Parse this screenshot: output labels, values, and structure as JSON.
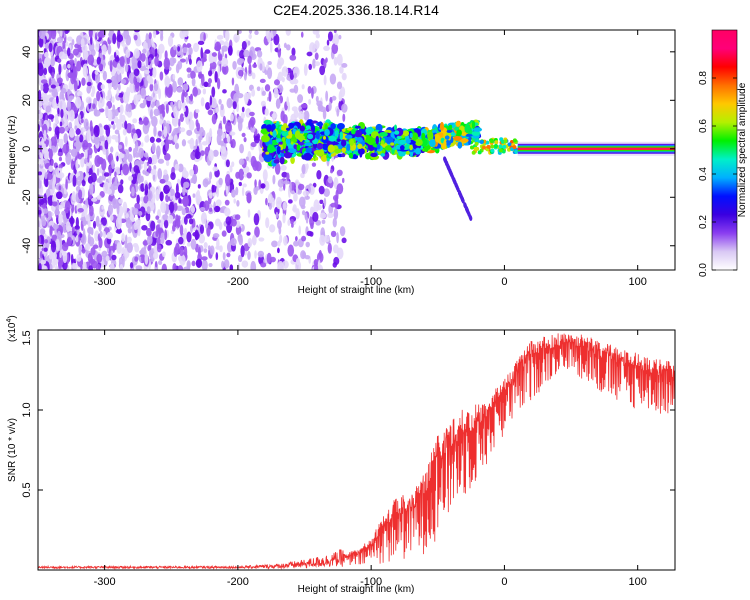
{
  "figure": {
    "title": "C2E4.2025.336.18.14.R14"
  },
  "chart_data": [
    {
      "type": "heatmap",
      "name": "spectrogram",
      "xlabel": "Height of straight line (km)",
      "ylabel": "Frequency (Hz)",
      "xlim": [
        -350,
        128
      ],
      "ylim": [
        -50,
        49
      ],
      "xticks": [
        -300,
        -200,
        -100,
        0,
        100
      ],
      "yticks": [
        -40,
        -20,
        0,
        20,
        40
      ],
      "colorbar": {
        "label": "Normalized spectral amplitude",
        "range": [
          0,
          1
        ],
        "ticks": [
          0.0,
          0.2,
          0.4,
          0.6,
          0.8
        ],
        "colors": [
          "#ffffff",
          "#d9c8f4",
          "#8a3ef0",
          "#3a00e0",
          "#0010ff",
          "#00b0ff",
          "#00f0c8",
          "#00f000",
          "#b4f000",
          "#ffc800",
          "#ff7000",
          "#ff0000",
          "#ff0078",
          "#ff0064"
        ]
      },
      "regions": [
        {
          "label": "Noise scatter",
          "x_range": [
            -350,
            -120
          ],
          "f_range": [
            -50,
            49
          ],
          "amplitude": 0.15
        },
        {
          "label": "Broad signal cluster",
          "x_range": [
            -180,
            -20
          ],
          "f_range": [
            -5,
            15
          ],
          "amplitude": 0.3
        },
        {
          "label": "Tone line",
          "x_range": [
            10,
            128
          ],
          "f_center": 0,
          "amplitude": 0.95
        }
      ]
    },
    {
      "type": "line",
      "name": "snr",
      "xlabel": "Height of straight line (km)",
      "ylabel": "SNR (10 * v/v)",
      "y_scale_label": "(x10",
      "y_scale_exponent": "4",
      "y_scale_suffix": ")",
      "color": "#ee2f2f",
      "xlim": [
        -350,
        128
      ],
      "ylim": [
        0,
        1.5
      ],
      "xticks": [
        -300,
        -200,
        -100,
        0,
        100
      ],
      "yticks": [
        0.5,
        1.0,
        1.5
      ],
      "ytick_labels": [
        "0.5",
        "1.0",
        "1.5"
      ],
      "series": [
        {
          "name": "SNR envelope",
          "x": [
            -350,
            -300,
            -250,
            -200,
            -170,
            -150,
            -130,
            -110,
            -100,
            -90,
            -80,
            -70,
            -60,
            -50,
            -40,
            -30,
            -20,
            -10,
            0,
            10,
            20,
            30,
            40,
            50,
            60,
            70,
            80,
            90,
            100,
            110,
            120,
            128
          ],
          "high": [
            0.02,
            0.02,
            0.02,
            0.02,
            0.03,
            0.05,
            0.08,
            0.13,
            0.2,
            0.35,
            0.48,
            0.5,
            0.62,
            0.85,
            0.95,
            1.02,
            1.04,
            1.1,
            1.2,
            1.32,
            1.45,
            1.46,
            1.48,
            1.48,
            1.47,
            1.44,
            1.41,
            1.38,
            1.36,
            1.34,
            1.31,
            1.3
          ],
          "low": [
            0.01,
            0.01,
            0.01,
            0.01,
            0.01,
            0.01,
            0.02,
            0.02,
            0.03,
            0.04,
            0.05,
            0.07,
            0.1,
            0.2,
            0.35,
            0.45,
            0.55,
            0.7,
            0.85,
            0.95,
            1.05,
            1.15,
            1.22,
            1.25,
            1.18,
            1.1,
            1.05,
            1.02,
            1.0,
            0.98,
            0.96,
            0.95
          ]
        }
      ]
    }
  ]
}
